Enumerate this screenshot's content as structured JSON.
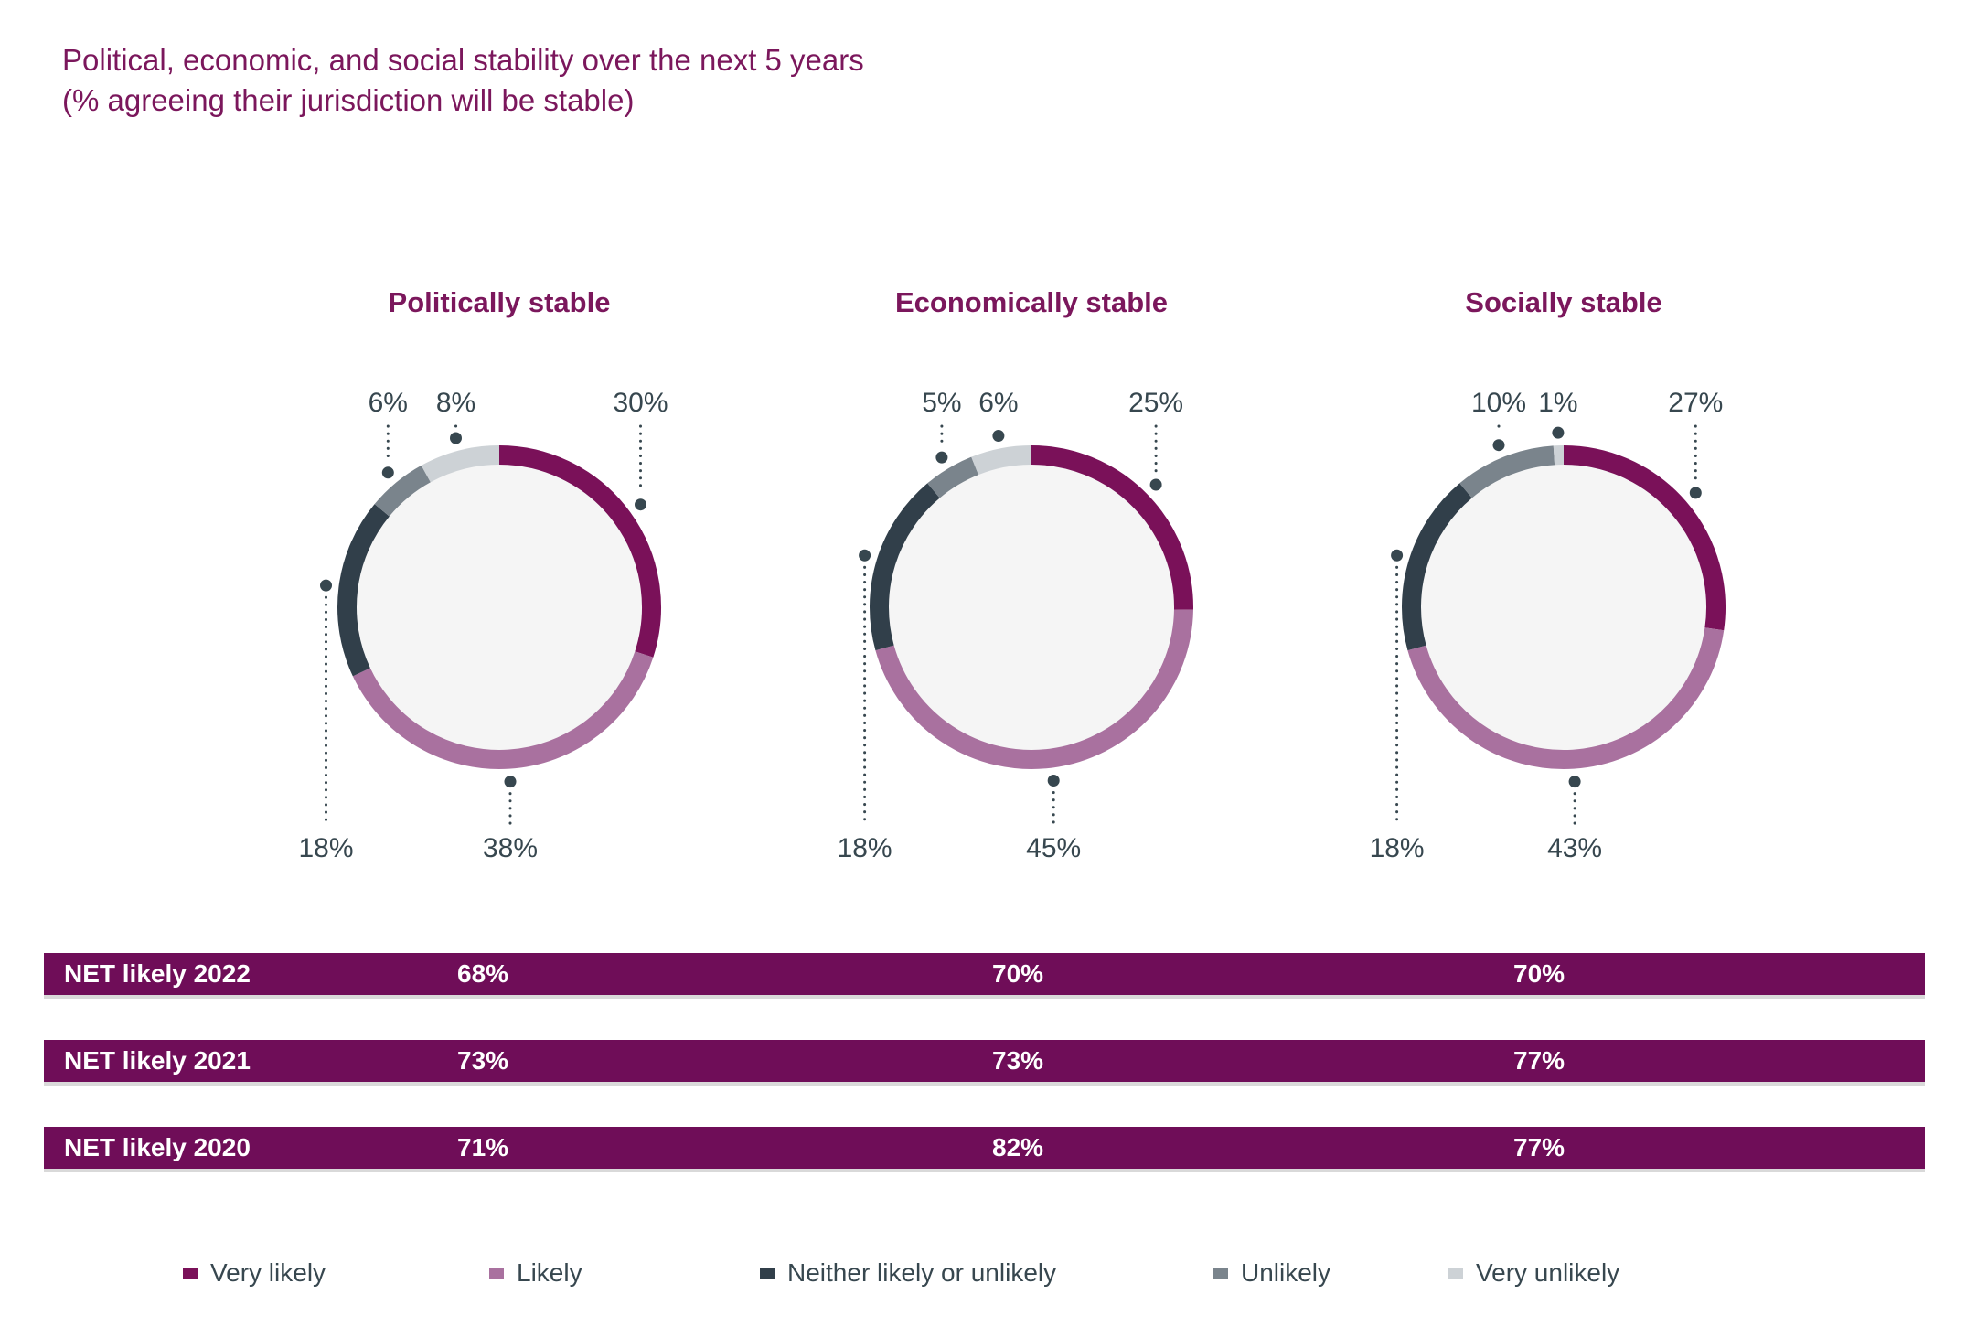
{
  "title": {
    "line1": "Political, economic, and social stability over the next 5 years",
    "line2": "(% agreeing their jurisdiction will be stable)"
  },
  "colors": {
    "very_likely": "#7A1159",
    "likely": "#A9719F",
    "neither": "#313F4A",
    "unlikely": "#7A848C",
    "very_unlikely": "#CDD2D6",
    "donut_inner": "#F5F5F5",
    "net_bar": "#6F0D58",
    "net_bar_edge": "#D9D9D9",
    "label_text": "#37474F",
    "title_text": "#7B175C"
  },
  "chart_data": {
    "type": "pie",
    "subtype": "donut-multiple",
    "title": "Political, economic, and social stability over the next 5 years",
    "subtitle": "(% agreeing their jurisdiction will be stable)",
    "units": "%",
    "legend_position": "bottom",
    "categories": [
      "Very likely",
      "Likely",
      "Neither likely or unlikely",
      "Unlikely",
      "Very unlikely"
    ],
    "donuts": [
      {
        "title": "Politically stable",
        "values": [
          30,
          38,
          18,
          6,
          8
        ]
      },
      {
        "title": "Economically stable",
        "values": [
          25,
          45,
          18,
          5,
          6
        ]
      },
      {
        "title": "Socially stable",
        "values": [
          27,
          43,
          18,
          10,
          1
        ]
      }
    ],
    "net_rows": [
      {
        "label": "NET likely 2022",
        "values": [
          "68%",
          "70%",
          "70%"
        ]
      },
      {
        "label": "NET likely 2021",
        "values": [
          "73%",
          "73%",
          "77%"
        ]
      },
      {
        "label": "NET likely 2020",
        "values": [
          "71%",
          "82%",
          "77%"
        ]
      }
    ]
  }
}
